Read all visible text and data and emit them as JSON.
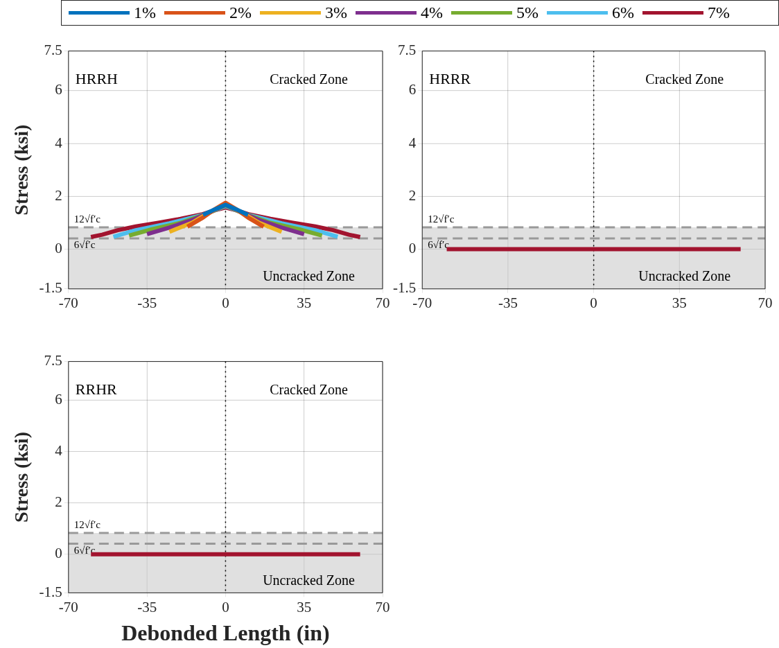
{
  "chart_data": [
    {
      "type": "line",
      "xlim": [
        -70,
        70
      ],
      "xticks": [
        -70,
        -35,
        0,
        35,
        70
      ],
      "ylim": [
        -1.5,
        7.5
      ],
      "yticks": [
        -1.5,
        0,
        2,
        4,
        6,
        7.5
      ],
      "ylabel": "Stress (ksi)",
      "grid": true,
      "legend": "top",
      "line_style": "solid",
      "marker": "none",
      "series": [
        {
          "name": "1%",
          "color": "#0072bd",
          "x": [
            -10,
            -5,
            0,
            5,
            10
          ],
          "values": [
            1.3,
            1.5,
            1.68,
            1.5,
            1.3
          ]
        },
        {
          "name": "2%",
          "color": "#d95319",
          "x": [
            -17,
            -10,
            -5,
            0,
            5,
            10,
            17
          ],
          "values": [
            0.85,
            1.2,
            1.5,
            1.76,
            1.5,
            1.2,
            0.85
          ]
        },
        {
          "name": "3%",
          "color": "#edb120",
          "x": [
            -25,
            -15,
            -8,
            0,
            8,
            15,
            25
          ],
          "values": [
            0.66,
            1.0,
            1.35,
            1.72,
            1.35,
            1.0,
            0.66
          ]
        },
        {
          "name": "4%",
          "color": "#7e2f8e",
          "x": [
            -35,
            -25,
            -15,
            -7,
            0,
            7,
            15,
            25,
            35
          ],
          "values": [
            0.57,
            0.82,
            1.1,
            1.4,
            1.68,
            1.4,
            1.1,
            0.82,
            0.57
          ]
        },
        {
          "name": "5%",
          "color": "#77ac30",
          "x": [
            -43,
            -33,
            -20,
            -8,
            0,
            8,
            20,
            33,
            43
          ],
          "values": [
            0.52,
            0.75,
            1.0,
            1.35,
            1.66,
            1.35,
            1.0,
            0.75,
            0.52
          ]
        },
        {
          "name": "6%",
          "color": "#4dbeee",
          "x": [
            -50,
            -40,
            -25,
            -10,
            0,
            10,
            25,
            40,
            50
          ],
          "values": [
            0.47,
            0.72,
            0.98,
            1.3,
            1.63,
            1.3,
            0.98,
            0.72,
            0.47
          ]
        },
        {
          "name": "7%",
          "color": "#a2142f",
          "x": [
            -60,
            -55,
            -48,
            -40,
            -30,
            -20,
            -10,
            -5,
            0,
            5,
            10,
            20,
            30,
            40,
            48,
            55,
            60
          ],
          "values": [
            0.46,
            0.55,
            0.72,
            0.86,
            1.0,
            1.15,
            1.33,
            1.47,
            1.58,
            1.47,
            1.33,
            1.15,
            1.0,
            0.86,
            0.72,
            0.55,
            0.46
          ]
        }
      ],
      "bands": [
        {
          "axis": "y",
          "from": -1.5,
          "to": 0.83,
          "color": "#e0e0e0"
        }
      ],
      "ref_lines": [
        {
          "axis": "y",
          "value": 0.83,
          "label": "12√f′c",
          "color": "#999999",
          "line_style": "dashed"
        },
        {
          "axis": "y",
          "value": 0.41,
          "label": "6√f′c",
          "color": "#999999",
          "line_style": "dashed"
        },
        {
          "axis": "x",
          "value": 0,
          "color": "#000000",
          "line_style": "dotted"
        }
      ],
      "annotations": [
        "HRRH",
        "Cracked Zone",
        "Uncracked Zone"
      ]
    },
    {
      "type": "line",
      "xlim": [
        -70,
        70
      ],
      "xticks": [
        -70,
        -35,
        0,
        35,
        70
      ],
      "ylim": [
        -1.5,
        7.5
      ],
      "yticks": [
        -1.5,
        0,
        2,
        4,
        6,
        7.5
      ],
      "grid": true,
      "line_style": "solid",
      "marker": "none",
      "series": [
        {
          "color": "#a2142f",
          "x": [
            -60,
            60
          ],
          "values": [
            0,
            0
          ]
        }
      ],
      "bands": [
        {
          "axis": "y",
          "from": -1.5,
          "to": 0.83,
          "color": "#e0e0e0"
        }
      ],
      "ref_lines": [
        {
          "axis": "y",
          "value": 0.83,
          "label": "12√f′c",
          "color": "#999999",
          "line_style": "dashed"
        },
        {
          "axis": "y",
          "value": 0.41,
          "label": "6√f′c",
          "color": "#999999",
          "line_style": "dashed"
        },
        {
          "axis": "x",
          "value": 0,
          "color": "#000000",
          "line_style": "dotted"
        }
      ],
      "annotations": [
        "HRRR",
        "Cracked Zone",
        "Uncracked Zone"
      ]
    },
    {
      "type": "line",
      "xlim": [
        -70,
        70
      ],
      "xticks": [
        -70,
        -35,
        0,
        35,
        70
      ],
      "ylim": [
        -1.5,
        7.5
      ],
      "yticks": [
        -1.5,
        0,
        2,
        4,
        6,
        7.5
      ],
      "xlabel": "Debonded Length (in)",
      "ylabel": "Stress (ksi)",
      "grid": true,
      "line_style": "solid",
      "marker": "none",
      "series": [
        {
          "color": "#a2142f",
          "x": [
            -60,
            60
          ],
          "values": [
            0,
            0
          ]
        }
      ],
      "bands": [
        {
          "axis": "y",
          "from": -1.5,
          "to": 0.83,
          "color": "#e0e0e0"
        }
      ],
      "ref_lines": [
        {
          "axis": "y",
          "value": 0.83,
          "label": "12√f′c",
          "color": "#999999",
          "line_style": "dashed"
        },
        {
          "axis": "y",
          "value": 0.41,
          "label": "6√f′c",
          "color": "#999999",
          "line_style": "dashed"
        },
        {
          "axis": "x",
          "value": 0,
          "color": "#000000",
          "line_style": "dotted"
        }
      ],
      "annotations": [
        "RRHR",
        "Cracked Zone",
        "Uncracked Zone"
      ]
    }
  ]
}
